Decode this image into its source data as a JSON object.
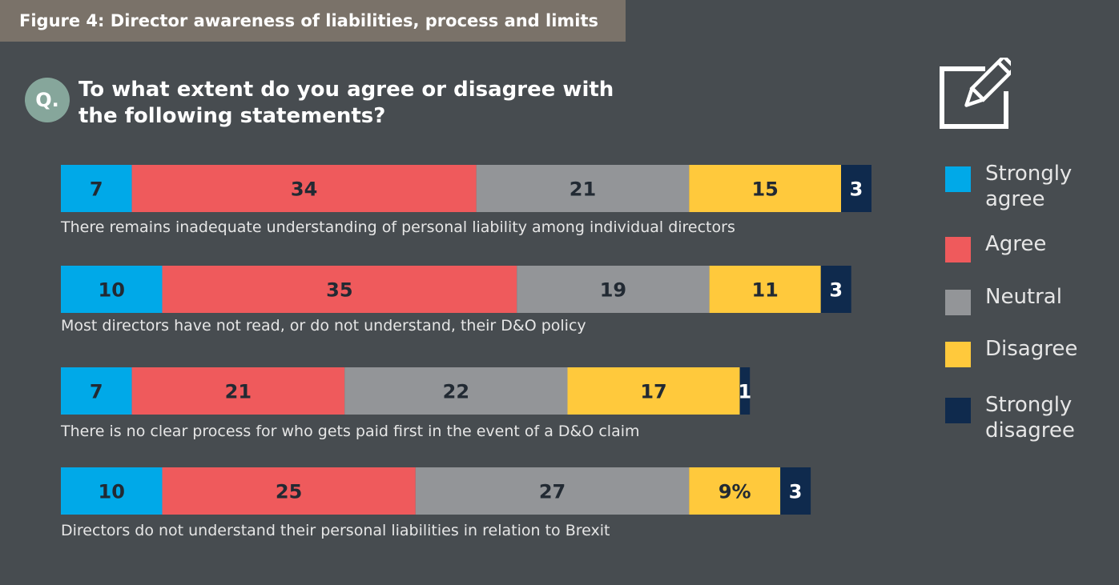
{
  "figure_title": "Figure 4: Director awareness of liabilities, process and limits",
  "question_badge": "Q.",
  "question_text": "To what extent do you agree or disagree with the following statements?",
  "icon": "pencil-edit-icon",
  "colors": {
    "strongly_agree": "#00a9e8",
    "agree": "#ef5a5c",
    "neutral": "#939598",
    "disagree": "#ffc93c",
    "strongly_disagree": "#0f2a4d"
  },
  "legend": [
    {
      "label": "Strongly agree",
      "key": "strongly_agree"
    },
    {
      "label": "Agree",
      "key": "agree"
    },
    {
      "label": "Neutral",
      "key": "neutral"
    },
    {
      "label": "Disagree",
      "key": "disagree"
    },
    {
      "label": "Strongly disagree",
      "key": "strongly_disagree"
    }
  ],
  "chart_data": {
    "type": "bar",
    "orientation": "horizontal",
    "stacked": true,
    "unit": "%",
    "categories": [
      "There remains inadequate understanding of personal liability among individual directors",
      "Most directors have not read, or do not understand, their D&O policy",
      "There is no clear process for who gets paid first in the event of a D&O claim",
      "Directors do not understand their personal liabilities in relation to Brexit"
    ],
    "series": [
      {
        "name": "Strongly agree",
        "values": [
          7,
          10,
          7,
          10
        ],
        "labels": [
          "7",
          "10",
          "7",
          "10"
        ]
      },
      {
        "name": "Agree",
        "values": [
          34,
          35,
          21,
          25
        ],
        "labels": [
          "34",
          "35",
          "21",
          "25"
        ]
      },
      {
        "name": "Neutral",
        "values": [
          21,
          19,
          22,
          27
        ],
        "labels": [
          "21",
          "19",
          "22",
          "27"
        ]
      },
      {
        "name": "Disagree",
        "values": [
          15,
          11,
          17,
          9
        ],
        "labels": [
          "15",
          "11",
          "17",
          "9%"
        ]
      },
      {
        "name": "Strongly disagree",
        "values": [
          3,
          3,
          1,
          3
        ],
        "labels": [
          "3",
          "3",
          "1",
          "3"
        ]
      }
    ]
  }
}
